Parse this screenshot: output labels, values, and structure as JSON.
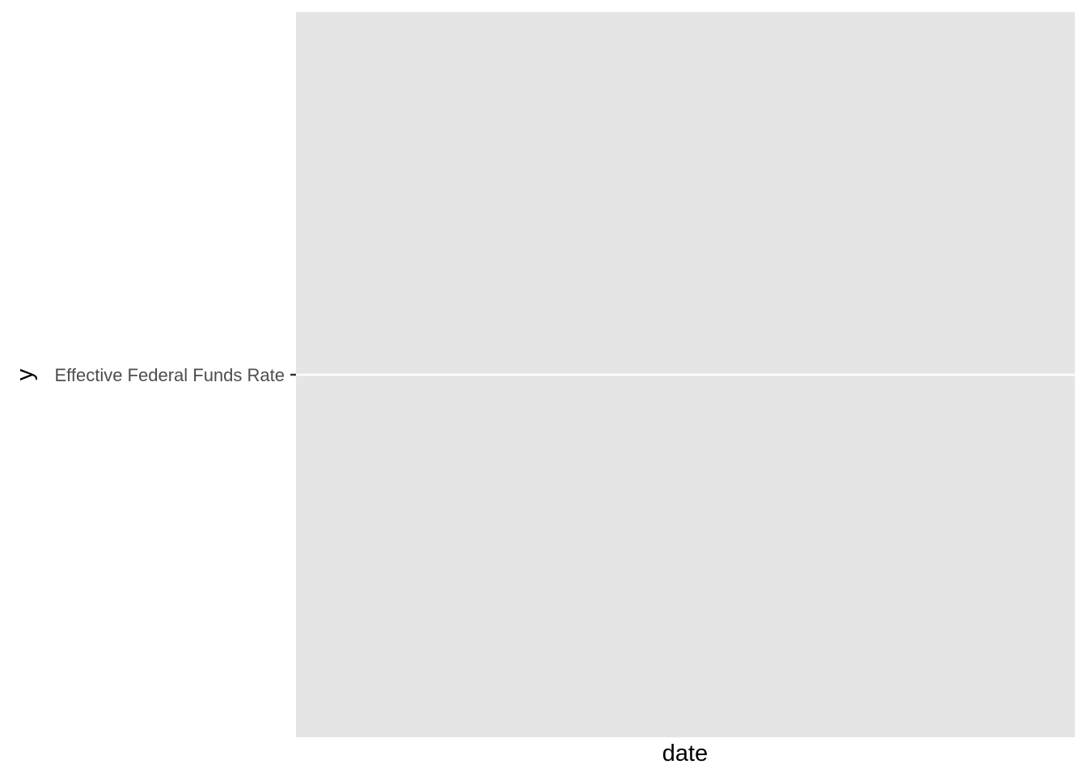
{
  "chart_data": {
    "type": "scatter",
    "title": "",
    "xlabel": "date",
    "ylabel": "y",
    "y_categories": [
      "Effective Federal Funds Rate"
    ],
    "series": [],
    "grid": true,
    "legend": "none",
    "colors": {
      "panel_background": "#e5e5e5",
      "gridline": "#ffffff",
      "tick_label": "#4d4d4d",
      "tick_mark": "#333333",
      "axis_title": "#000000"
    }
  }
}
